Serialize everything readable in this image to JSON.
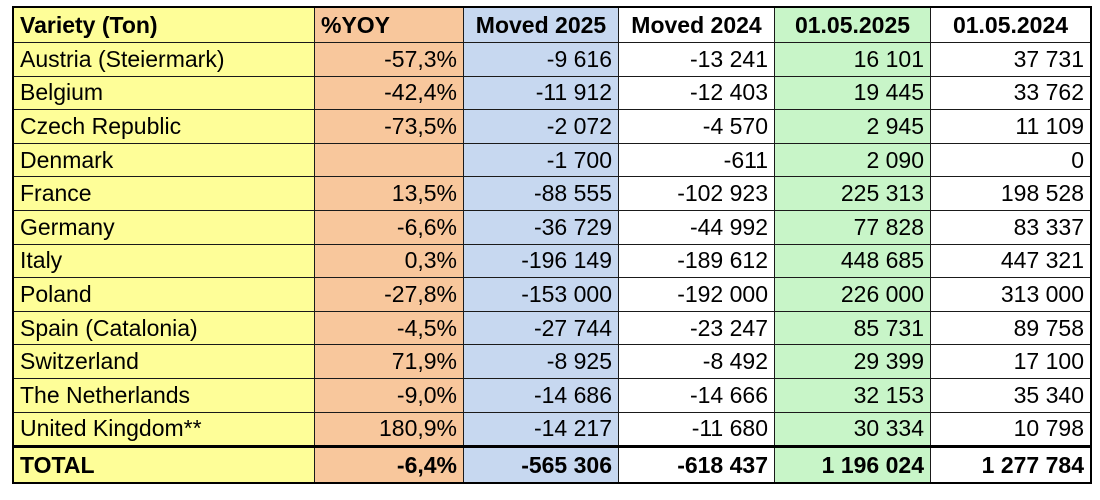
{
  "headers": {
    "variety": "Variety (Ton)",
    "yoy": "%YOY",
    "moved_2025": "Moved 2025",
    "moved_2024": "Moved 2024",
    "stock_2025": "01.05.2025",
    "stock_2024": "01.05.2024"
  },
  "rows": [
    {
      "variety": "Austria (Steiermark)",
      "yoy": "-57,3%",
      "moved_2025": "-9 616",
      "moved_2024": "-13 241",
      "stock_2025": "16 101",
      "stock_2024": "37 731"
    },
    {
      "variety": "Belgium",
      "yoy": "-42,4%",
      "moved_2025": "-11 912",
      "moved_2024": "-12 403",
      "stock_2025": "19 445",
      "stock_2024": "33 762"
    },
    {
      "variety": "Czech Republic",
      "yoy": "-73,5%",
      "moved_2025": "-2 072",
      "moved_2024": "-4 570",
      "stock_2025": "2 945",
      "stock_2024": "11 109"
    },
    {
      "variety": "Denmark",
      "yoy": "",
      "moved_2025": "-1 700",
      "moved_2024": "-611",
      "stock_2025": "2 090",
      "stock_2024": "0"
    },
    {
      "variety": "France",
      "yoy": "13,5%",
      "moved_2025": "-88 555",
      "moved_2024": "-102 923",
      "stock_2025": "225 313",
      "stock_2024": "198 528"
    },
    {
      "variety": "Germany",
      "yoy": "-6,6%",
      "moved_2025": "-36 729",
      "moved_2024": "-44 992",
      "stock_2025": "77 828",
      "stock_2024": "83 337"
    },
    {
      "variety": "Italy",
      "yoy": "0,3%",
      "moved_2025": "-196 149",
      "moved_2024": "-189 612",
      "stock_2025": "448 685",
      "stock_2024": "447 321"
    },
    {
      "variety": "Poland",
      "yoy": "-27,8%",
      "moved_2025": "-153 000",
      "moved_2024": "-192 000",
      "stock_2025": "226 000",
      "stock_2024": "313 000"
    },
    {
      "variety": "Spain (Catalonia)",
      "yoy": "-4,5%",
      "moved_2025": "-27 744",
      "moved_2024": "-23 247",
      "stock_2025": "85 731",
      "stock_2024": "89 758"
    },
    {
      "variety": "Switzerland",
      "yoy": "71,9%",
      "moved_2025": "-8 925",
      "moved_2024": "-8 492",
      "stock_2025": "29 399",
      "stock_2024": "17 100"
    },
    {
      "variety": "The Netherlands",
      "yoy": "-9,0%",
      "moved_2025": "-14 686",
      "moved_2024": "-14 666",
      "stock_2025": "32 153",
      "stock_2024": "35 340"
    },
    {
      "variety": "United Kingdom**",
      "yoy": "180,9%",
      "moved_2025": "-14 217",
      "moved_2024": "-11 680",
      "stock_2025": "30 334",
      "stock_2024": "10 798"
    }
  ],
  "total": {
    "variety": "TOTAL",
    "yoy": "-6,4%",
    "moved_2025": "-565 306",
    "moved_2024": "-618 437",
    "stock_2025": "1 196 024",
    "stock_2024": "1 277 784"
  },
  "colors": {
    "variety_column": "#fefe98",
    "yoy_column": "#f8c79c",
    "moved_2025_column": "#c7d8f0",
    "stock_2025_column": "#c8f5c8"
  }
}
